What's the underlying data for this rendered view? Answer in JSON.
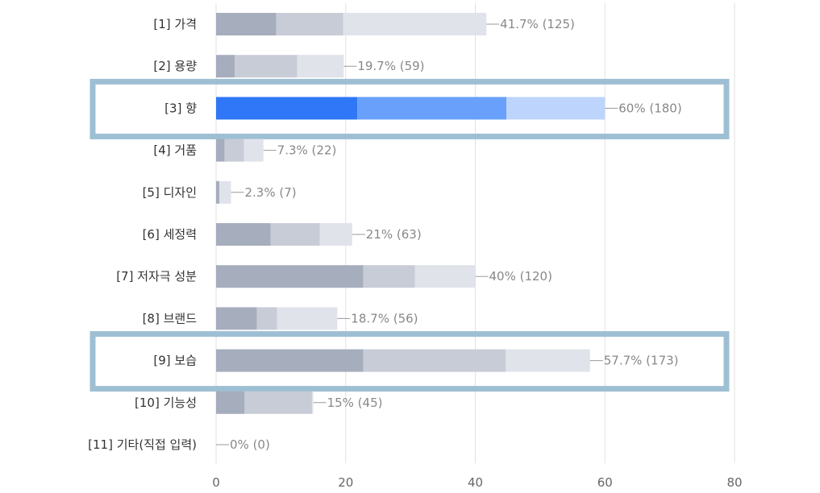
{
  "chart_data": {
    "type": "bar",
    "orientation": "horizontal",
    "stacked": true,
    "categories": [
      "[1] 가격",
      "[2] 용량",
      "[3] 향",
      "[4] 거품",
      "[5] 디자인",
      "[6] 세정력",
      "[7] 저자극 성분",
      "[8] 브랜드",
      "[9] 보습",
      "[10] 기능성",
      "[11] 기타(직접 입력)"
    ],
    "totals": [
      41.7,
      19.7,
      60,
      7.3,
      2.3,
      21,
      40,
      18.7,
      57.7,
      15,
      0
    ],
    "segments": [
      [
        9.3,
        10.3,
        22.1
      ],
      [
        2.9,
        9.6,
        7.2
      ],
      [
        21.8,
        23,
        15.2
      ],
      [
        1.3,
        3,
        3
      ],
      [
        0.5,
        0,
        1.8
      ],
      [
        8.4,
        7.6,
        5
      ],
      [
        22.7,
        8,
        9.3
      ],
      [
        6.3,
        3.1,
        9.3
      ],
      [
        22.7,
        22,
        13
      ],
      [
        4.4,
        10.4,
        0.2
      ],
      [
        0,
        0,
        0
      ]
    ],
    "data_labels": [
      "41.7% (125)",
      "19.7% (59)",
      "60% (180)",
      "7.3% (22)",
      "2.3% (7)",
      "21% (63)",
      "40% (120)",
      "18.7% (56)",
      "57.7% (173)",
      "15% (45)",
      "0% (0)"
    ],
    "highlighted": [
      "[3] 향",
      "[9] 보습"
    ],
    "highlight_active": "[3] 향",
    "x_ticks": [
      "0",
      "20",
      "40",
      "60",
      "80"
    ],
    "xlim": [
      0,
      80
    ],
    "grid": "vertical",
    "title": "",
    "xlabel": "",
    "ylabel": "",
    "colors": {
      "gray_segments": [
        "#a6adbd",
        "#c8ccd7",
        "#e0e3ea"
      ],
      "blue_segments": [
        "#2f77f6",
        "#68a0fb",
        "#bdd4fd"
      ],
      "highlight_box": "#9ebfd3",
      "grid": "#e2e2e2",
      "label_text": "#333333",
      "value_text": "#888888"
    }
  }
}
